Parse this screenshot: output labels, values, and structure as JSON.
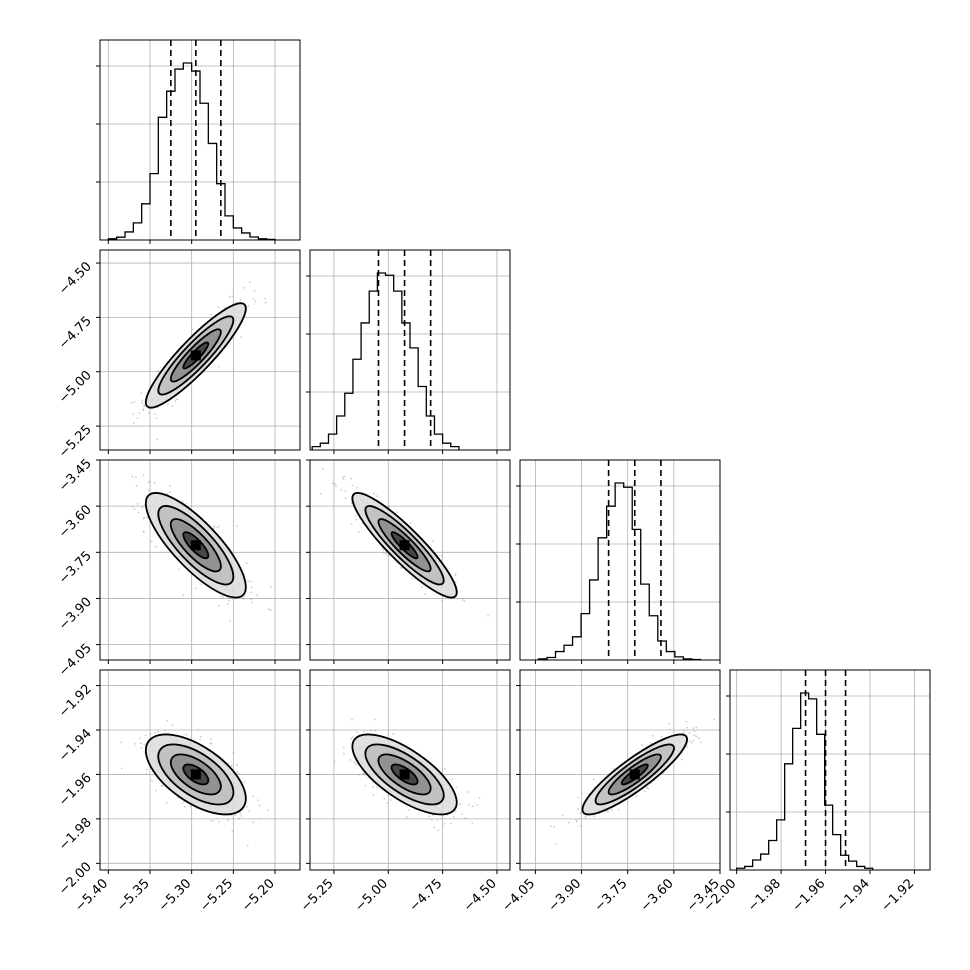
{
  "chart_data": {
    "type": "corner",
    "parameters": [
      {
        "range": [
          -5.41,
          -5.17
        ],
        "ticks": [
          -5.4,
          -5.35,
          -5.3,
          -5.25,
          -5.2
        ],
        "tick_labels": [
          "−5.40",
          "−5.35",
          "−5.30",
          "−5.25",
          "−5.20"
        ],
        "quantiles": [
          -5.325,
          -5.295,
          -5.265
        ],
        "hist": {
          "start": -5.4,
          "step": 0.01,
          "values": [
            0.6,
            1.4,
            4.0,
            8.5,
            18.0,
            33.0,
            61.0,
            74.0,
            85.0,
            88.0,
            84.0,
            68.0,
            48.0,
            28.0,
            12.0,
            6.0,
            3.5,
            1.5,
            0.6,
            0.3
          ]
        }
      },
      {
        "range": [
          -5.36,
          -4.44
        ],
        "ticks": [
          -5.25,
          -5.0,
          -4.75,
          -4.5
        ],
        "tick_labels": [
          "−5.25",
          "−5.00",
          "−4.75",
          "−4.50"
        ],
        "quantiles": [
          -5.045,
          -4.925,
          -4.805
        ],
        "hist": {
          "start": -5.35,
          "step": 0.0375,
          "values": [
            1.5,
            3.0,
            7.0,
            15.0,
            25.0,
            40.0,
            56.0,
            70.0,
            78.0,
            77.0,
            70.0,
            56.0,
            45.0,
            28.0,
            15.0,
            7.0,
            3.0,
            1.5
          ]
        }
      },
      {
        "range": [
          -4.1,
          -3.45
        ],
        "ticks": [
          -4.05,
          -3.9,
          -3.75,
          -3.6,
          -3.45
        ],
        "tick_labels": [
          "−4.05",
          "−3.90",
          "−3.75",
          "−3.60",
          "−3.45"
        ],
        "quantiles": [
          -3.812,
          -3.727,
          -3.642
        ],
        "hist": {
          "start": -4.04,
          "step": 0.0277,
          "values": [
            0.5,
            1.2,
            4.0,
            7.0,
            11.0,
            22.0,
            38.0,
            58.0,
            73.0,
            84.0,
            82.0,
            62.0,
            36.0,
            21.0,
            9.0,
            4.0,
            1.5,
            0.5,
            0.2
          ]
        }
      },
      {
        "range": [
          -2.003,
          -1.913
        ],
        "ticks": [
          -2.0,
          -1.98,
          -1.96,
          -1.94,
          -1.92
        ],
        "tick_labels": [
          "−2.00",
          "−1.98",
          "−1.96",
          "−1.94",
          "−1.92"
        ],
        "quantiles": [
          -1.969,
          -1.96,
          -1.951
        ],
        "hist": {
          "start": -2.0,
          "step": 0.0036,
          "values": [
            0.3,
            0.6,
            1.7,
            2.7,
            5.0,
            8.5,
            18.0,
            24.0,
            30.0,
            29.0,
            23.0,
            11.0,
            6.0,
            2.5,
            1.5,
            0.6,
            0.3
          ]
        }
      }
    ],
    "correlation": [
      [
        1.0,
        0.9,
        -0.8,
        -0.6
      ],
      [
        0.9,
        1.0,
        -0.9,
        -0.7
      ],
      [
        -0.8,
        -0.9,
        1.0,
        0.88
      ],
      [
        -0.6,
        -0.7,
        0.88,
        1.0
      ]
    ],
    "contour_levels_sigma": [
      0.5,
      1.0,
      1.5,
      2.0
    ],
    "grid": true,
    "colors": {
      "contour": "#000000",
      "histogram": "#000000",
      "grid": "#b0b0b0",
      "scatter": "#aaaaaa"
    }
  }
}
